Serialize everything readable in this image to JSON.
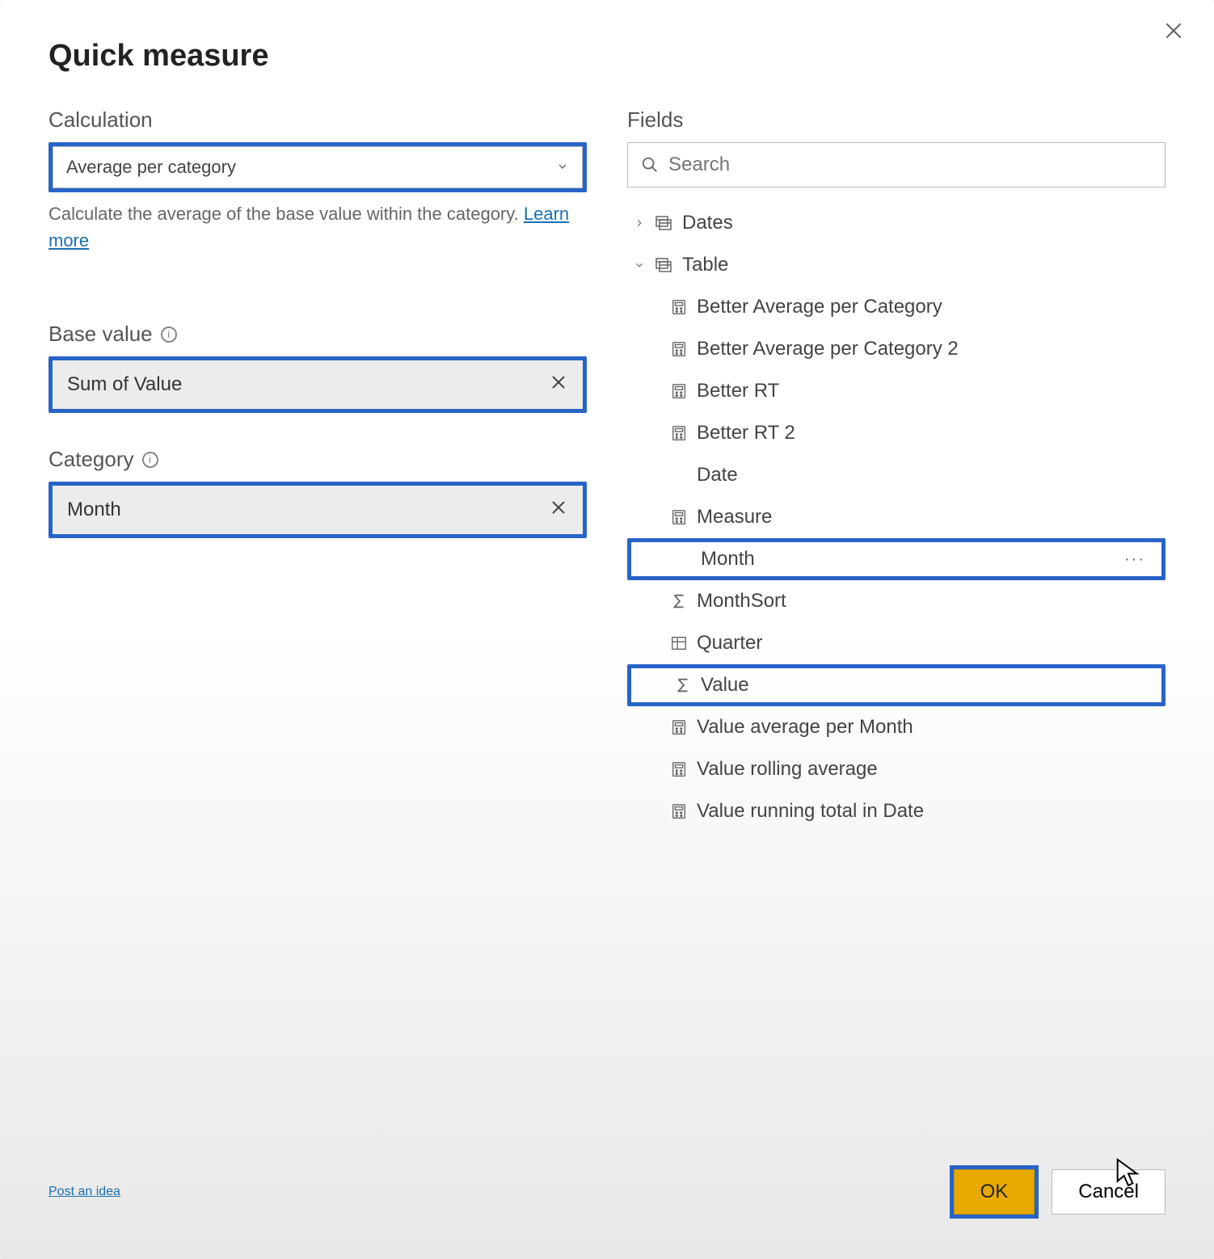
{
  "dialog": {
    "title": "Quick measure"
  },
  "calculation": {
    "label": "Calculation",
    "selected": "Average per category",
    "helper": "Calculate the average of the base value within the category.",
    "learn_more": "Learn more"
  },
  "base_value": {
    "label": "Base value",
    "value": "Sum of Value"
  },
  "category": {
    "label": "Category",
    "value": "Month"
  },
  "fields": {
    "label": "Fields",
    "search_placeholder": "Search",
    "tables": [
      {
        "name": "Dates",
        "expanded": false
      },
      {
        "name": "Table",
        "expanded": true
      }
    ],
    "table_items": [
      {
        "label": "Better Average per Category",
        "icon": "calc",
        "highlighted": false
      },
      {
        "label": "Better Average per Category 2",
        "icon": "calc",
        "highlighted": false
      },
      {
        "label": "Better RT",
        "icon": "calc",
        "highlighted": false
      },
      {
        "label": "Better RT 2",
        "icon": "calc",
        "highlighted": false
      },
      {
        "label": "Date",
        "icon": "none",
        "highlighted": false
      },
      {
        "label": "Measure",
        "icon": "calc",
        "highlighted": false
      },
      {
        "label": "Month",
        "icon": "none",
        "highlighted": true,
        "show_ellipsis": true
      },
      {
        "label": "MonthSort",
        "icon": "sigma",
        "highlighted": false
      },
      {
        "label": "Quarter",
        "icon": "hier",
        "highlighted": false
      },
      {
        "label": "Value",
        "icon": "sigma",
        "highlighted": true
      },
      {
        "label": "Value average per Month",
        "icon": "calc",
        "highlighted": false
      },
      {
        "label": "Value rolling average",
        "icon": "calc",
        "highlighted": false
      },
      {
        "label": "Value running total in Date",
        "icon": "calc",
        "highlighted": false
      }
    ]
  },
  "footer": {
    "post_idea": "Post an idea",
    "ok": "OK",
    "cancel": "Cancel"
  },
  "colors": {
    "highlight_border": "#2864c7",
    "primary_button": "#e8a900",
    "link": "#1a6fb0"
  }
}
